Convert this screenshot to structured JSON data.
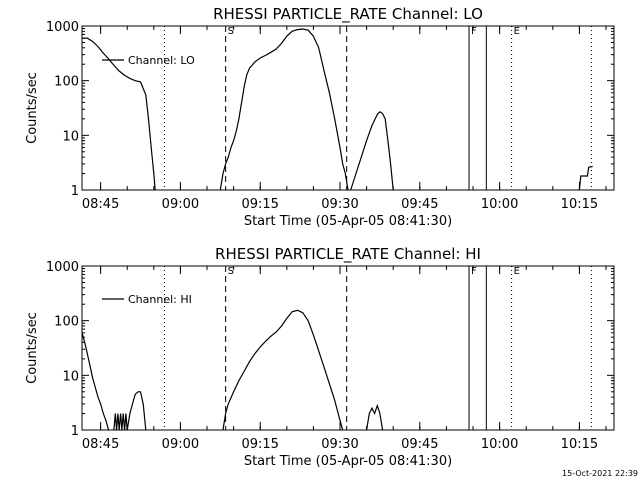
{
  "chart_data": [
    {
      "type": "line",
      "title": "RHESSI PARTICLE_RATE Channel: LO",
      "xlabel": "Start Time (05-Apr-05 08:41:30)",
      "ylabel": "Counts/sec",
      "yscale": "log",
      "ylim": [
        1,
        1000
      ],
      "xlim": [
        "08:41:30",
        "10:21:30"
      ],
      "x_ticks": [
        "08:45",
        "09:00",
        "09:15",
        "09:30",
        "09:45",
        "10:00",
        "10:15"
      ],
      "y_ticks": [
        "1",
        "10",
        "100",
        "1000"
      ],
      "legend": "Channel: LO",
      "grid": false,
      "markers": [
        {
          "label": "S",
          "time": "09:08:30",
          "style": "dashed"
        },
        {
          "label": "",
          "time": "09:31:15",
          "style": "dashed"
        },
        {
          "label": "",
          "time": "08:57:00",
          "style": "dotted"
        },
        {
          "label": "F",
          "time": "09:54:15",
          "style": "solid"
        },
        {
          "label": "",
          "time": "09:57:30",
          "style": "solid"
        },
        {
          "label": "E",
          "time": "10:02:15",
          "style": "dotted"
        },
        {
          "label": "",
          "time": "10:17:15",
          "style": "dotted"
        }
      ],
      "series": [
        {
          "segments": [
            [
              [
                "08:41:30",
                600
              ],
              [
                "08:42:30",
                600
              ],
              [
                "08:43:30",
                520
              ],
              [
                "08:44:30",
                420
              ],
              [
                "08:45:30",
                320
              ],
              [
                "08:46:30",
                250
              ],
              [
                "08:47:30",
                190
              ],
              [
                "08:48:30",
                150
              ],
              [
                "08:49:30",
                125
              ],
              [
                "08:50:30",
                110
              ],
              [
                "08:51:30",
                100
              ],
              [
                "08:52:30",
                95
              ],
              [
                "08:53:30",
                55
              ],
              [
                "08:54:00",
                20
              ],
              [
                "08:54:30",
                6
              ],
              [
                "08:55:00",
                2
              ],
              [
                "08:55:15",
                1
              ]
            ],
            [
              [
                "09:07:30",
                1
              ],
              [
                "09:08:00",
                2
              ],
              [
                "09:08:30",
                3
              ],
              [
                "09:09:00",
                4
              ],
              [
                "09:09:30",
                6
              ],
              [
                "09:10:00",
                8
              ],
              [
                "09:10:30",
                12
              ],
              [
                "09:11:00",
                20
              ],
              [
                "09:11:30",
                40
              ],
              [
                "09:12:00",
                80
              ],
              [
                "09:12:30",
                130
              ],
              [
                "09:13:00",
                170
              ],
              [
                "09:14:00",
                220
              ],
              [
                "09:15:00",
                260
              ],
              [
                "09:16:00",
                290
              ],
              [
                "09:17:00",
                330
              ],
              [
                "09:18:00",
                380
              ],
              [
                "09:19:00",
                480
              ],
              [
                "09:20:00",
                650
              ],
              [
                "09:21:00",
                800
              ],
              [
                "09:22:00",
                860
              ],
              [
                "09:23:00",
                880
              ],
              [
                "09:24:00",
                840
              ],
              [
                "09:25:00",
                650
              ],
              [
                "09:26:00",
                400
              ],
              [
                "09:27:00",
                150
              ],
              [
                "09:28:00",
                60
              ],
              [
                "09:29:00",
                20
              ],
              [
                "09:30:00",
                6
              ],
              [
                "09:30:30",
                3
              ],
              [
                "09:31:00",
                2
              ],
              [
                "09:31:30",
                1
              ]
            ],
            [
              [
                "09:32:00",
                1
              ],
              [
                "09:33:00",
                2
              ],
              [
                "09:34:00",
                4
              ],
              [
                "09:35:00",
                8
              ],
              [
                "09:36:00",
                15
              ],
              [
                "09:37:00",
                24
              ],
              [
                "09:37:30",
                27
              ],
              [
                "09:38:00",
                25
              ],
              [
                "09:38:30",
                20
              ],
              [
                "09:39:00",
                8
              ],
              [
                "09:39:30",
                3
              ],
              [
                "09:40:00",
                1
              ]
            ],
            [
              [
                "10:15:00",
                1
              ],
              [
                "10:15:15",
                1.8
              ],
              [
                "10:16:30",
                1.8
              ],
              [
                "10:16:45",
                2.6
              ],
              [
                "10:17:30",
                2.7
              ]
            ]
          ]
        }
      ]
    },
    {
      "type": "line",
      "title": "RHESSI PARTICLE_RATE Channel: HI",
      "xlabel": "Start Time (05-Apr-05 08:41:30)",
      "ylabel": "Counts/sec",
      "yscale": "log",
      "ylim": [
        1,
        1000
      ],
      "xlim": [
        "08:41:30",
        "10:21:30"
      ],
      "x_ticks": [
        "08:45",
        "09:00",
        "09:15",
        "09:30",
        "09:45",
        "10:00",
        "10:15"
      ],
      "y_ticks": [
        "1",
        "10",
        "100",
        "1000"
      ],
      "legend": "Channel: HI",
      "grid": false,
      "markers": [
        {
          "label": "S",
          "time": "09:08:30",
          "style": "dashed"
        },
        {
          "label": "",
          "time": "09:31:15",
          "style": "dashed"
        },
        {
          "label": "",
          "time": "08:57:00",
          "style": "dotted"
        },
        {
          "label": "F",
          "time": "09:54:15",
          "style": "solid"
        },
        {
          "label": "",
          "time": "09:57:30",
          "style": "solid"
        },
        {
          "label": "E",
          "time": "10:02:15",
          "style": "dotted"
        },
        {
          "label": "",
          "time": "10:17:15",
          "style": "dotted"
        }
      ],
      "series": [
        {
          "segments": [
            [
              [
                "08:41:30",
                60
              ],
              [
                "08:42:00",
                40
              ],
              [
                "08:42:30",
                25
              ],
              [
                "08:43:00",
                15
              ],
              [
                "08:43:30",
                9
              ],
              [
                "08:44:00",
                6
              ],
              [
                "08:44:30",
                4
              ],
              [
                "08:45:00",
                3
              ],
              [
                "08:45:30",
                2
              ],
              [
                "08:46:00",
                1.5
              ],
              [
                "08:46:30",
                1
              ]
            ],
            [
              [
                "08:47:30",
                1
              ],
              [
                "08:47:45",
                2
              ],
              [
                "08:48:00",
                1
              ],
              [
                "08:48:15",
                2
              ],
              [
                "08:48:30",
                1
              ],
              [
                "08:48:45",
                2
              ],
              [
                "08:49:00",
                1
              ],
              [
                "08:49:15",
                2
              ],
              [
                "08:49:30",
                1
              ],
              [
                "08:49:45",
                2
              ],
              [
                "08:50:00",
                1
              ],
              [
                "08:50:30",
                2
              ],
              [
                "08:51:00",
                3
              ],
              [
                "08:51:30",
                4.5
              ],
              [
                "08:52:00",
                5
              ],
              [
                "08:52:30",
                5
              ],
              [
                "08:53:00",
                3
              ],
              [
                "08:53:30",
                1
              ]
            ],
            [
              [
                "09:08:00",
                1
              ],
              [
                "09:08:30",
                2
              ],
              [
                "09:09:00",
                3
              ],
              [
                "09:10:00",
                5
              ],
              [
                "09:11:00",
                8
              ],
              [
                "09:12:00",
                12
              ],
              [
                "09:13:00",
                18
              ],
              [
                "09:14:00",
                25
              ],
              [
                "09:15:00",
                33
              ],
              [
                "09:16:00",
                42
              ],
              [
                "09:17:00",
                52
              ],
              [
                "09:18:00",
                62
              ],
              [
                "09:19:00",
                80
              ],
              [
                "09:20:00",
                110
              ],
              [
                "09:21:00",
                145
              ],
              [
                "09:22:00",
                155
              ],
              [
                "09:23:00",
                140
              ],
              [
                "09:24:00",
                100
              ],
              [
                "09:25:00",
                55
              ],
              [
                "09:26:00",
                28
              ],
              [
                "09:27:00",
                14
              ],
              [
                "09:28:00",
                7
              ],
              [
                "09:29:00",
                3.5
              ],
              [
                "09:30:00",
                1.5
              ],
              [
                "09:30:30",
                1
              ]
            ],
            [
              [
                "09:35:00",
                1
              ],
              [
                "09:35:30",
                2
              ],
              [
                "09:36:00",
                2.5
              ],
              [
                "09:36:30",
                2
              ],
              [
                "09:37:00",
                2.8
              ],
              [
                "09:37:30",
                2
              ],
              [
                "09:38:00",
                1
              ]
            ]
          ]
        }
      ]
    }
  ],
  "footer": {
    "timestamp": "15-Oct-2021 22:39"
  }
}
